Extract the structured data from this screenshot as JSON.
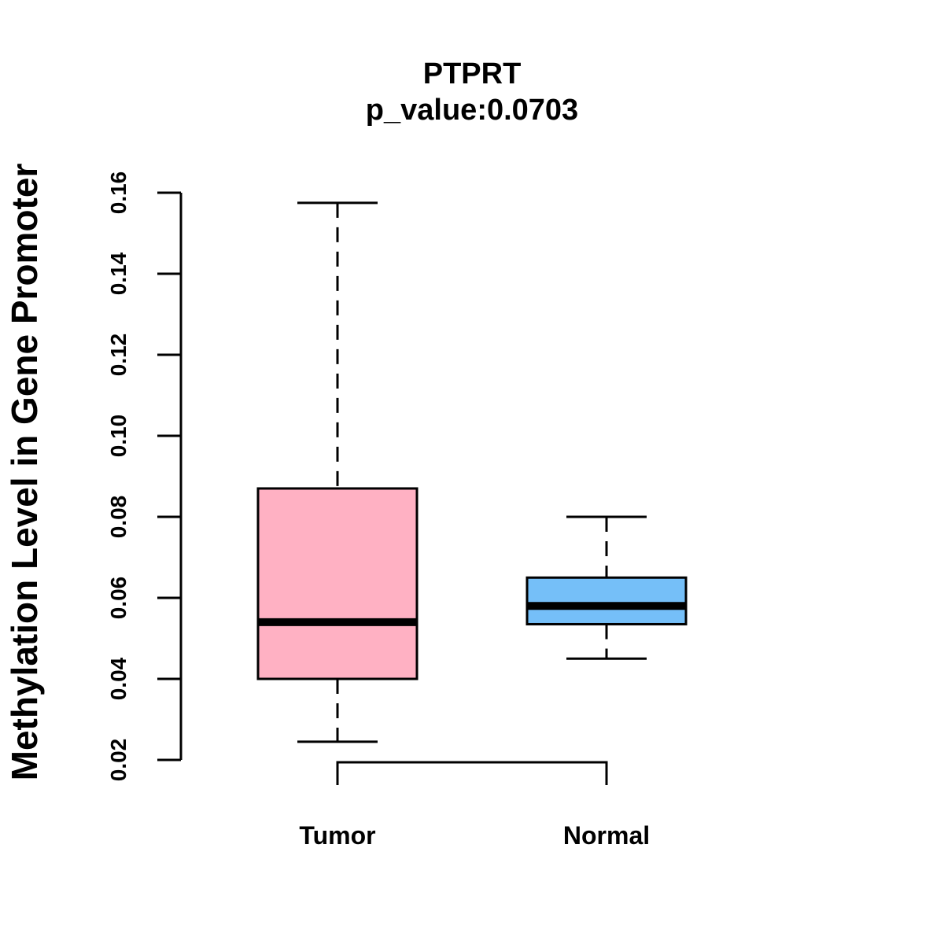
{
  "chart_data": {
    "type": "boxplot",
    "title": "PTPRT",
    "subtitle": "p_value:0.0703",
    "xlabel": "",
    "ylabel": "Methylation Level in Gene Promoter",
    "ylim": [
      0.02,
      0.16
    ],
    "yticks": [
      "0.02",
      "0.04",
      "0.06",
      "0.08",
      "0.10",
      "0.12",
      "0.14",
      "0.16"
    ],
    "series": [
      {
        "name": "Tumor",
        "whisker_low": 0.0245,
        "q1": 0.04,
        "median": 0.054,
        "q3": 0.087,
        "whisker_high": 0.1575,
        "color": "#FFB1C3"
      },
      {
        "name": "Normal",
        "whisker_low": 0.045,
        "q1": 0.0535,
        "median": 0.058,
        "q3": 0.065,
        "whisker_high": 0.08,
        "color": "#75BFF8"
      }
    ],
    "comparison_bracket": [
      "Tumor",
      "Normal"
    ]
  }
}
